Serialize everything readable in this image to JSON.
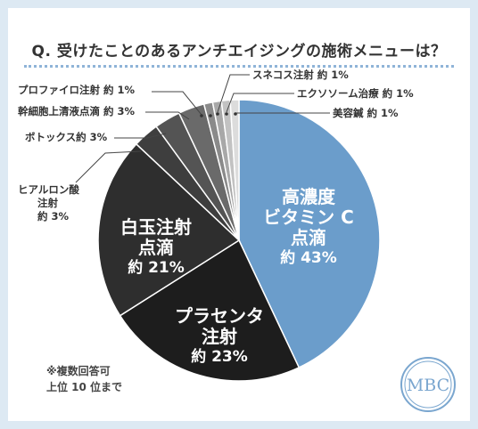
{
  "chart_data": {
    "type": "pie",
    "title": "Q. 受けたことのあるアンチエイジングの施術メニューは？",
    "slices": [
      {
        "label": "高濃度ビタミンC点滴",
        "value": 43,
        "color": "#6b9dcb"
      },
      {
        "label": "プラセンタ注射",
        "value": 23,
        "color": "#1d1d1d"
      },
      {
        "label": "白玉注射点滴",
        "value": 21,
        "color": "#2e2e2e"
      },
      {
        "label": "ヒアルロン酸注射",
        "value": 3,
        "color": "#3e3e3e"
      },
      {
        "label": "ボトックス",
        "value": 3,
        "color": "#545454"
      },
      {
        "label": "幹細胞上清液点滴",
        "value": 3,
        "color": "#6a6a6a"
      },
      {
        "label": "プロファイロ注射",
        "value": 1,
        "color": "#8a8a8a"
      },
      {
        "label": "スネコス注射",
        "value": 1,
        "color": "#a8a8a8"
      },
      {
        "label": "エクソソーム治療",
        "value": 1,
        "color": "#c2c2c2"
      },
      {
        "label": "美容鍼",
        "value": 1,
        "color": "#dcdcdc"
      }
    ]
  },
  "labels": {
    "vitc_1": "高濃度",
    "vitc_2": "ビタミン C",
    "vitc_3": "点滴",
    "vitc_pct": "約 43%",
    "placenta_1": "プラセンタ",
    "placenta_2": "注射",
    "placenta_pct": "約 23%",
    "shiratama_1": "白玉注射",
    "shiratama_2": "点滴",
    "shiratama_pct": "約 21%",
    "hyaluron_1": "ヒアルロン酸",
    "hyaluron_2": "注射",
    "hyaluron_pct": "約 3%",
    "botox": "ボトックス",
    "botox_pct": "約 3%",
    "stemcell": "幹細胞上清液点滴",
    "stemcell_pct": "約 3%",
    "profhilo": "プロファイロ注射",
    "profhilo_pct": "約 1%",
    "sunekos": "スネコス注射",
    "sunekos_pct": "約 1%",
    "exosome": "エクソソーム治療",
    "exosome_pct": "約 1%",
    "acupuncture": "美容鍼",
    "acupuncture_pct": "約 1%"
  },
  "note": {
    "line1": "※複数回答可",
    "line2": "上位 10 位まで"
  },
  "logo": {
    "text": "MBC",
    "color": "#7aa6cf"
  }
}
